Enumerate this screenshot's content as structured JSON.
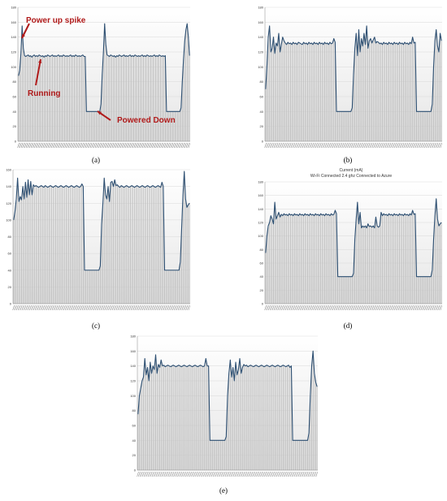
{
  "figure": {
    "annotations": {
      "power_up_spike": "Power up spike",
      "running": "Running",
      "powered_down": "Powered Down"
    }
  },
  "chart_data": [
    {
      "type": "area",
      "panel": "a",
      "caption": "(a)",
      "ylim": [
        0,
        180
      ],
      "yticks": [
        "0",
        "20",
        "40",
        "60",
        "80",
        "100",
        "120",
        "140",
        "160",
        "180"
      ],
      "grid": true,
      "fill_color": "#bfbfbf",
      "line_color": "#2d4f72",
      "annotation_color": "#b01a1a",
      "y": [
        88,
        95,
        118,
        155,
        125,
        115,
        114,
        115,
        116,
        114,
        115,
        113,
        115,
        116,
        114,
        115,
        114,
        116,
        115,
        114,
        115,
        113,
        115,
        114,
        116,
        115,
        114,
        115,
        116,
        114,
        115,
        114,
        115,
        116,
        114,
        115,
        114,
        116,
        115,
        114,
        115,
        114,
        115,
        116,
        114,
        115,
        114,
        116,
        115,
        114,
        115,
        114,
        115,
        116,
        114,
        114,
        40,
        40,
        40,
        40,
        40,
        40,
        40,
        40,
        40,
        40,
        40,
        40,
        50,
        90,
        120,
        158,
        130,
        116,
        115,
        114,
        116,
        115,
        114,
        115,
        113,
        115,
        114,
        116,
        115,
        114,
        115,
        116,
        114,
        115,
        114,
        115,
        116,
        114,
        115,
        114,
        116,
        115,
        114,
        115,
        114,
        115,
        116,
        114,
        115,
        114,
        116,
        115,
        114,
        115,
        114,
        115,
        116,
        114,
        115,
        114,
        116,
        115,
        114,
        115,
        114,
        115,
        40,
        40,
        40,
        40,
        40,
        40,
        40,
        40,
        40,
        40,
        40,
        40,
        45,
        80,
        110,
        135,
        150,
        158,
        140,
        115
      ]
    },
    {
      "type": "area",
      "panel": "b",
      "caption": "(b)",
      "ylim": [
        0,
        180
      ],
      "yticks": [
        "0",
        "20",
        "40",
        "60",
        "80",
        "100",
        "120",
        "140",
        "160",
        "180"
      ],
      "grid": true,
      "fill_color": "#bfbfbf",
      "line_color": "#2d4f72",
      "y": [
        70,
        100,
        140,
        155,
        120,
        125,
        140,
        118,
        132,
        128,
        145,
        120,
        130,
        140,
        135,
        132,
        130,
        133,
        131,
        132,
        130,
        133,
        131,
        132,
        130,
        133,
        132,
        131,
        130,
        133,
        131,
        132,
        130,
        133,
        131,
        132,
        130,
        133,
        131,
        132,
        130,
        133,
        131,
        132,
        130,
        133,
        131,
        132,
        130,
        133,
        131,
        132,
        138,
        133,
        40,
        40,
        40,
        40,
        40,
        40,
        40,
        40,
        40,
        40,
        40,
        40,
        45,
        90,
        125,
        145,
        115,
        150,
        120,
        138,
        128,
        145,
        130,
        155,
        125,
        135,
        138,
        132,
        136,
        140,
        132,
        134,
        133,
        131,
        132,
        130,
        133,
        131,
        132,
        130,
        133,
        131,
        132,
        130,
        133,
        131,
        132,
        130,
        133,
        131,
        132,
        130,
        133,
        131,
        132,
        130,
        133,
        131,
        140,
        132,
        133,
        40,
        40,
        40,
        40,
        40,
        40,
        40,
        40,
        40,
        40,
        40,
        40,
        50,
        100,
        135,
        150,
        128,
        120,
        145,
        135
      ]
    },
    {
      "type": "area",
      "panel": "c",
      "caption": "(c)",
      "ylim": [
        0,
        160
      ],
      "yticks": [
        "0",
        "20",
        "40",
        "60",
        "80",
        "100",
        "120",
        "140",
        "160"
      ],
      "grid": true,
      "fill_color": "#bfbfbf",
      "line_color": "#2d4f72",
      "y": [
        100,
        110,
        125,
        150,
        122,
        128,
        124,
        140,
        125,
        145,
        127,
        148,
        130,
        146,
        130,
        142,
        140,
        141,
        140,
        139,
        140,
        141,
        140,
        139,
        141,
        140,
        139,
        140,
        141,
        140,
        139,
        140,
        141,
        140,
        139,
        140,
        141,
        140,
        139,
        140,
        141,
        140,
        139,
        140,
        141,
        140,
        139,
        140,
        141,
        140,
        139,
        140,
        143,
        140,
        40,
        40,
        40,
        40,
        40,
        40,
        40,
        40,
        40,
        40,
        40,
        40,
        45,
        95,
        120,
        150,
        130,
        125,
        140,
        122,
        145,
        146,
        140,
        148,
        141,
        142,
        140,
        139,
        141,
        140,
        139,
        140,
        141,
        140,
        139,
        140,
        141,
        140,
        139,
        140,
        141,
        140,
        139,
        140,
        141,
        140,
        139,
        140,
        141,
        140,
        139,
        140,
        141,
        140,
        139,
        140,
        141,
        140,
        139,
        145,
        140,
        40,
        40,
        40,
        40,
        40,
        40,
        40,
        40,
        40,
        40,
        40,
        40,
        50,
        90,
        130,
        158,
        125,
        115,
        118,
        120
      ]
    },
    {
      "type": "area",
      "panel": "d",
      "caption": "(d)",
      "title": "Current (mA)",
      "subtitle": "Wi-Fi Connected 2.4 ghz Connected to Azure",
      "ylim": [
        0,
        180
      ],
      "yticks": [
        "0",
        "20",
        "40",
        "60",
        "80",
        "100",
        "120",
        "140",
        "160",
        "180"
      ],
      "grid": true,
      "fill_color": "#bfbfbf",
      "line_color": "#2d4f72",
      "y": [
        75,
        100,
        115,
        120,
        130,
        125,
        118,
        150,
        125,
        130,
        135,
        128,
        132,
        130,
        133,
        131,
        132,
        130,
        133,
        131,
        132,
        130,
        133,
        131,
        132,
        130,
        133,
        131,
        132,
        130,
        133,
        131,
        132,
        130,
        133,
        131,
        132,
        130,
        133,
        131,
        132,
        130,
        133,
        131,
        132,
        130,
        133,
        131,
        132,
        130,
        133,
        131,
        132,
        138,
        133,
        40,
        40,
        40,
        40,
        40,
        40,
        40,
        40,
        40,
        40,
        40,
        40,
        45,
        95,
        125,
        150,
        118,
        135,
        112,
        115,
        113,
        115,
        112,
        118,
        114,
        115,
        113,
        115,
        112,
        128,
        115,
        113,
        115,
        135,
        130,
        133,
        131,
        132,
        130,
        133,
        131,
        132,
        130,
        133,
        131,
        132,
        130,
        133,
        131,
        132,
        130,
        133,
        131,
        132,
        130,
        133,
        131,
        138,
        132,
        133,
        40,
        40,
        40,
        40,
        40,
        40,
        40,
        40,
        40,
        40,
        40,
        40,
        50,
        95,
        130,
        155,
        125,
        115,
        118,
        120
      ]
    },
    {
      "type": "area",
      "panel": "e",
      "caption": "(e)",
      "ylim": [
        0,
        180
      ],
      "yticks": [
        "0",
        "20",
        "40",
        "60",
        "80",
        "100",
        "120",
        "140",
        "160",
        "180"
      ],
      "grid": true,
      "fill_color": "#bfbfbf",
      "line_color": "#2d4f72",
      "y": [
        75,
        100,
        110,
        120,
        125,
        150,
        128,
        138,
        120,
        145,
        130,
        140,
        135,
        155,
        130,
        142,
        138,
        148,
        140,
        141,
        139,
        140,
        141,
        140,
        139,
        140,
        141,
        140,
        139,
        140,
        141,
        140,
        139,
        140,
        141,
        140,
        139,
        140,
        141,
        140,
        139,
        140,
        141,
        140,
        139,
        140,
        141,
        140,
        139,
        140,
        150,
        140,
        140,
        40,
        40,
        40,
        40,
        40,
        40,
        40,
        40,
        40,
        40,
        40,
        40,
        45,
        100,
        130,
        148,
        125,
        138,
        120,
        145,
        128,
        135,
        150,
        130,
        138,
        142,
        140,
        141,
        139,
        140,
        141,
        140,
        139,
        140,
        141,
        140,
        139,
        140,
        141,
        140,
        139,
        140,
        141,
        140,
        139,
        140,
        141,
        140,
        139,
        140,
        141,
        140,
        139,
        140,
        141,
        140,
        139,
        140,
        141,
        138,
        140,
        40,
        40,
        40,
        40,
        40,
        40,
        40,
        40,
        40,
        40,
        40,
        40,
        50,
        100,
        140,
        160,
        130,
        118,
        112
      ]
    }
  ]
}
